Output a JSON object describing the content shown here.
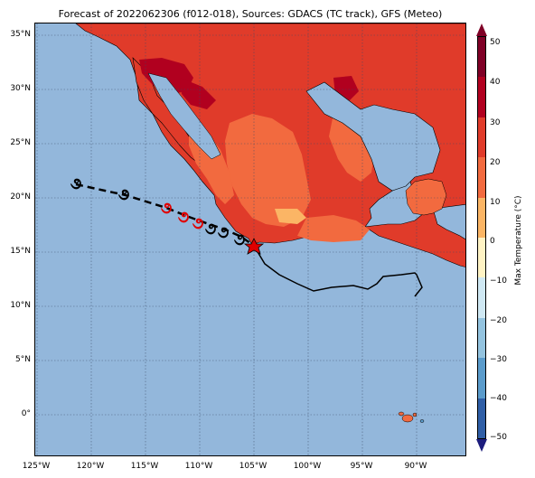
{
  "title": "Forecast of 2022062306 (f012-018), Sources: GDACS (TC track), GFS (Meteo)",
  "colorbar": {
    "label": "Max Temperature (°C)",
    "ticks": [
      "50",
      "40",
      "30",
      "20",
      "10",
      "0",
      "−10",
      "−20",
      "−30",
      "−40",
      "−50"
    ],
    "colors": [
      "#7f0026",
      "#b1001f",
      "#e03b2a",
      "#f26a3f",
      "#fbb565",
      "#fff3c4",
      "#cfe8f3",
      "#93c3df",
      "#5a9bcb",
      "#2f5ea6",
      "#1c1c7d"
    ]
  },
  "axes": {
    "lat_labels": [
      "35°N",
      "30°N",
      "25°N",
      "20°N",
      "15°N",
      "10°N",
      "5°N",
      "0°"
    ],
    "lon_labels": [
      "125°W",
      "120°W",
      "115°W",
      "110°W",
      "105°W",
      "100°W",
      "95°W",
      "90°W"
    ]
  },
  "colors": {
    "ocean": "#93b7db",
    "land_hot": "#e03b2a",
    "land_warm": "#f26a3f",
    "land_veryhot": "#b1001f",
    "land_mild": "#fbb565",
    "track": "#000000",
    "forecast_storm": "#e00000"
  },
  "track": {
    "current_position_icon": "red-star-icon",
    "storm_icons": "hurricane-icon"
  }
}
